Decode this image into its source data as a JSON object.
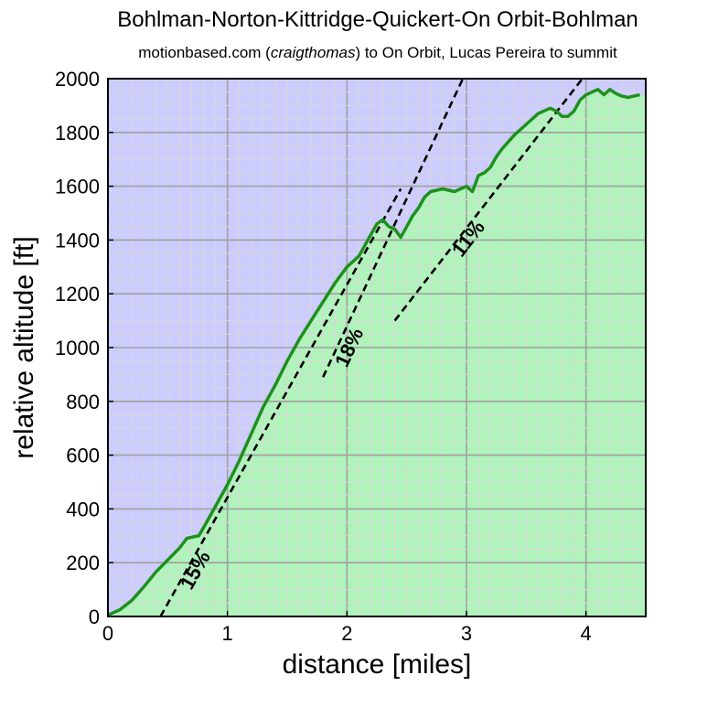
{
  "title": "Bohlman-Norton-Kittridge-Quickert-On Orbit-Bohlman",
  "subtitle": {
    "pre": "motionbased.com (",
    "em": "craigthomas",
    "post": ") to On Orbit, Lucas Pereira to summit"
  },
  "colors": {
    "sky": "#ccccff",
    "ground": "#a8ffa8",
    "profile": "#1e901e",
    "major_grid": "#a0a0a0",
    "minor_grid": "#d8d8d8",
    "guide": "#000000"
  },
  "chart_data": {
    "type": "area",
    "xlabel": "distance [miles]",
    "ylabel": "relative altitude [ft]",
    "xlim": [
      0,
      4.5
    ],
    "ylim": [
      0,
      2000
    ],
    "xticks": [
      0,
      1,
      2,
      3,
      4
    ],
    "yticks": [
      0,
      200,
      400,
      600,
      800,
      1000,
      1200,
      1400,
      1600,
      1800,
      2000
    ],
    "grid": true,
    "series": [
      {
        "x": [
          0,
          0.1,
          0.2,
          0.3,
          0.4,
          0.5,
          0.6,
          0.66,
          0.7,
          0.76,
          0.8,
          0.9,
          1.0,
          1.1,
          1.2,
          1.3,
          1.4,
          1.5,
          1.6,
          1.7,
          1.8,
          1.9,
          2.0,
          2.05,
          2.1,
          2.15,
          2.2,
          2.25,
          2.3,
          2.35,
          2.4,
          2.45,
          2.5,
          2.55,
          2.6,
          2.65,
          2.7,
          2.8,
          2.9,
          3.0,
          3.05,
          3.1,
          3.15,
          3.2,
          3.25,
          3.3,
          3.4,
          3.5,
          3.6,
          3.7,
          3.75,
          3.8,
          3.85,
          3.9,
          3.95,
          4.0,
          4.05,
          4.1,
          4.15,
          4.2,
          4.25,
          4.3,
          4.35,
          4.4,
          4.45
        ],
        "y": [
          5,
          25,
          60,
          110,
          165,
          210,
          255,
          290,
          295,
          300,
          330,
          410,
          490,
          580,
          680,
          780,
          860,
          950,
          1030,
          1100,
          1170,
          1240,
          1300,
          1320,
          1340,
          1380,
          1420,
          1460,
          1475,
          1450,
          1440,
          1410,
          1450,
          1490,
          1520,
          1560,
          1580,
          1590,
          1580,
          1600,
          1580,
          1640,
          1650,
          1670,
          1710,
          1740,
          1790,
          1830,
          1870,
          1890,
          1880,
          1860,
          1860,
          1880,
          1920,
          1940,
          1950,
          1960,
          1940,
          1960,
          1945,
          1935,
          1930,
          1935,
          1940
        ]
      }
    ],
    "guide_lines": [
      {
        "label": "15%",
        "x": [
          0.44,
          2.45
        ],
        "y": [
          0,
          1590
        ]
      },
      {
        "label": "18%",
        "x": [
          1.8,
          2.97
        ],
        "y": [
          890,
          2000
        ]
      },
      {
        "label": "11%",
        "x": [
          2.4,
          3.97
        ],
        "y": [
          1100,
          2000
        ]
      }
    ],
    "slope_labels": [
      {
        "text": "15%",
        "x": 0.78,
        "y": 160
      },
      {
        "text": "18%",
        "x": 2.07,
        "y": 990
      },
      {
        "text": "11%",
        "x": 3.06,
        "y": 1390
      }
    ]
  }
}
